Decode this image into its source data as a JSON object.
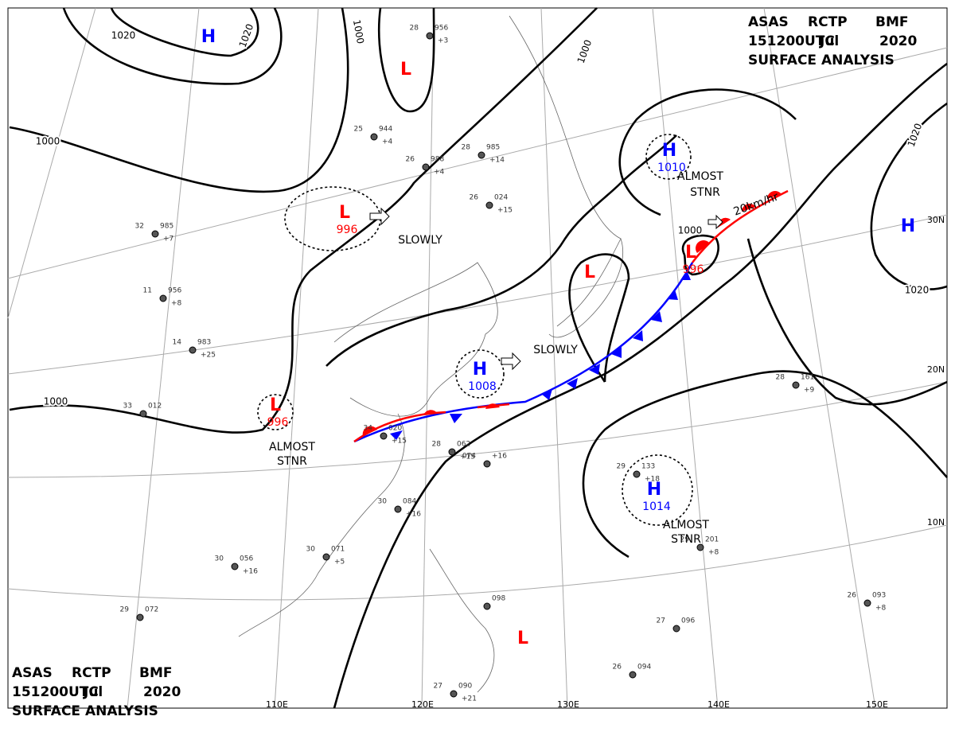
{
  "header": {
    "lines": [
      [
        "ASAS",
        "RCTP",
        "BMF"
      ],
      [
        "151200UTC",
        "Jul",
        "2020"
      ],
      [
        "SURFACE ANALYSIS"
      ]
    ]
  },
  "centers": [
    {
      "label": "H"
    },
    {
      "label": "L"
    },
    {
      "label": "H",
      "pressure": "1010"
    },
    {
      "label": "L",
      "pressure": "996"
    },
    {
      "label": "L"
    },
    {
      "label": "L",
      "pressure": "996"
    },
    {
      "label": "H",
      "pressure": "1008"
    },
    {
      "label": "L",
      "pressure": "996"
    },
    {
      "label": "H",
      "pressure": "1014"
    },
    {
      "label": "H"
    },
    {
      "label": "L"
    }
  ],
  "isobar_labels": [
    "1020",
    "1020",
    "1000",
    "1000",
    "1000",
    "1000",
    "1000",
    "1020",
    "1020"
  ],
  "annotations": [
    "SLOWLY",
    "SLOWLY",
    "ALMOST",
    "STNR",
    "20km/hr",
    "ALMOST",
    "STNR",
    "ALMOST",
    "STNR"
  ],
  "graticule": {
    "lon": [
      "110E",
      "120E",
      "130E",
      "140E",
      "150E"
    ],
    "lat": [
      "30N",
      "20N",
      "10N"
    ]
  },
  "stations": [
    [
      "28",
      "956",
      "+3"
    ],
    [
      "25",
      "944",
      "+4"
    ],
    [
      "26",
      "988",
      "+4"
    ],
    [
      "28",
      "985",
      "+14"
    ],
    [
      "26",
      "024",
      "+15"
    ],
    [
      "32",
      "985",
      "+7"
    ],
    [
      "11",
      "956",
      "+8"
    ],
    [
      "14",
      "983",
      "+25"
    ],
    [
      "33",
      "012"
    ],
    [
      "34",
      "020",
      "+15"
    ],
    [
      "28",
      "062",
      "+15"
    ],
    [
      "074",
      "+16"
    ],
    [
      "30",
      "084",
      "+16"
    ],
    [
      "30",
      "056",
      "+16"
    ],
    [
      "098"
    ],
    [
      "26",
      "094"
    ],
    [
      "27",
      "096"
    ],
    [
      "26",
      "093",
      "+8"
    ],
    [
      "28",
      "161",
      "+9"
    ],
    [
      "29",
      "201",
      "+8"
    ],
    [
      "27",
      "090",
      "+21"
    ],
    [
      "29",
      "072"
    ],
    [
      "30",
      "071",
      "+5"
    ],
    [
      "29",
      "133",
      "+18"
    ]
  ]
}
